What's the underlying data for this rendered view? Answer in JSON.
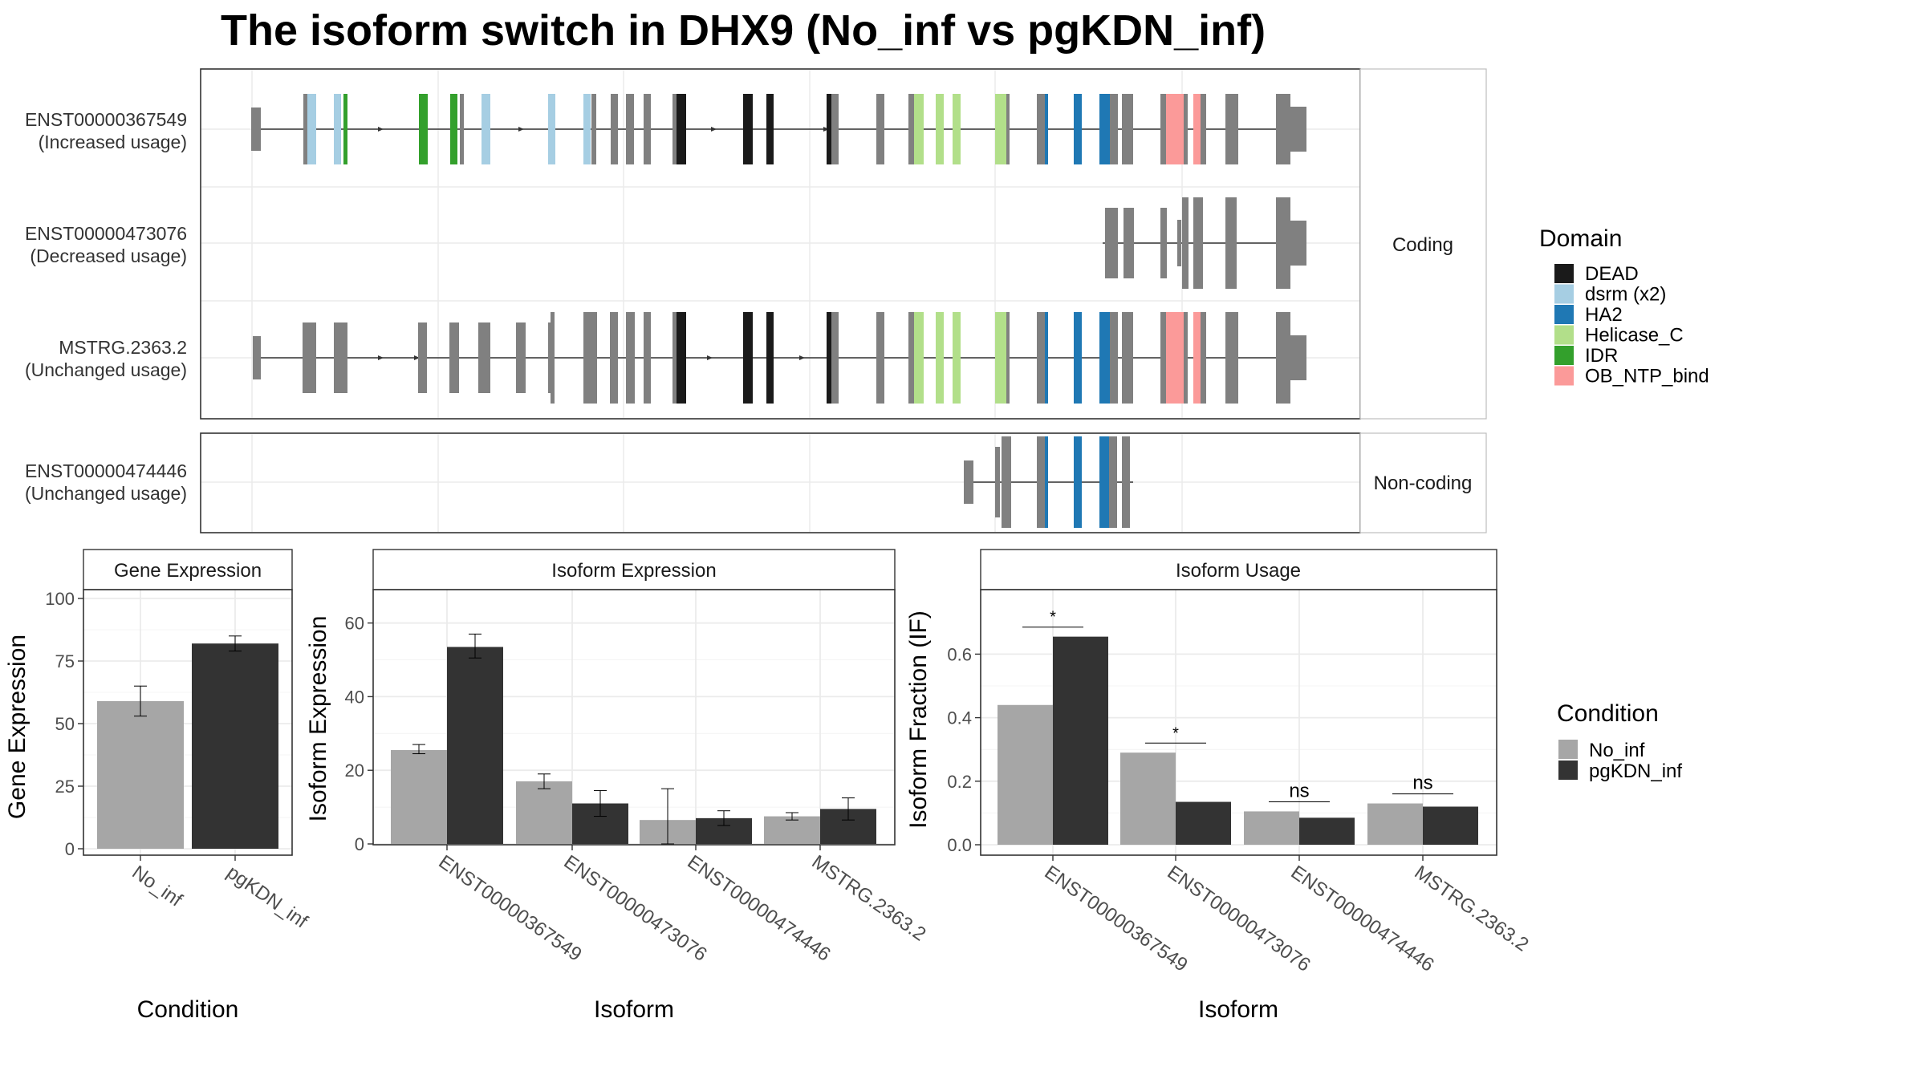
{
  "title": "The isoform switch in DHX9 (No_inf vs pgKDN_inf)",
  "colors": {
    "no_inf": "#a6a6a6",
    "pgkdn_inf": "#333333",
    "exon": "#808080",
    "DEAD": "#1a1a1a",
    "dsrm (x2)": "#a6cee3",
    "HA2": "#1f78b4",
    "Helicase_C": "#b2df8a",
    "IDR": "#33a02c",
    "OB_NTP_bind": "#fb9a99"
  },
  "structure": {
    "facets": {
      "coding": "Coding",
      "noncoding": "Non-coding"
    },
    "isoforms": [
      {
        "id": "ENST00000367549",
        "usage": "(Increased usage)",
        "facet": "coding"
      },
      {
        "id": "ENST00000473076",
        "usage": "(Decreased usage)",
        "facet": "coding"
      },
      {
        "id": "MSTRG.2363.2",
        "usage": "(Unchanged usage)",
        "facet": "coding"
      },
      {
        "id": "ENST00000474446",
        "usage": "(Unchanged usage)",
        "facet": "noncoding"
      }
    ],
    "legend_title": "Domain",
    "domains": [
      "DEAD",
      "dsrm (x2)",
      "HA2",
      "Helicase_C",
      "IDR",
      "OB_NTP_bind"
    ]
  },
  "chart_data": [
    {
      "type": "bar",
      "title": "Gene Expression",
      "xlabel": "Condition",
      "ylabel": "Gene Expression",
      "categories": [
        "No_inf",
        "pgKDN_inf"
      ],
      "values": [
        59,
        82
      ],
      "errors": [
        [
          53,
          65
        ],
        [
          79,
          85
        ]
      ],
      "yticks": [
        0,
        25,
        50,
        75,
        100
      ],
      "ylim": [
        0,
        105
      ]
    },
    {
      "type": "bar",
      "title": "Isoform Expression",
      "xlabel": "Isoform",
      "ylabel": "Isoform Expression",
      "categories": [
        "ENST00000367549",
        "ENST00000473076",
        "ENST00000474446",
        "MSTRG.2363.2"
      ],
      "series": [
        {
          "name": "No_inf",
          "values": [
            25.5,
            17,
            6.5,
            7.5
          ],
          "errors": [
            [
              24.5,
              27
            ],
            [
              15,
              19
            ],
            [
              0,
              15
            ],
            [
              6.5,
              8.5
            ]
          ]
        },
        {
          "name": "pgKDN_inf",
          "values": [
            53.5,
            11,
            7,
            9.5
          ],
          "errors": [
            [
              50.5,
              57
            ],
            [
              7.5,
              14.5
            ],
            [
              5,
              9
            ],
            [
              6.5,
              12.5
            ]
          ]
        }
      ],
      "yticks": [
        0,
        20,
        40,
        60
      ],
      "ylim": [
        -3,
        69
      ]
    },
    {
      "type": "bar",
      "title": "Isoform Usage",
      "xlabel": "Isoform",
      "ylabel": "Isoform Fraction (IF)",
      "categories": [
        "ENST00000367549",
        "ENST00000473076",
        "ENST00000474446",
        "MSTRG.2363.2"
      ],
      "series": [
        {
          "name": "No_inf",
          "values": [
            0.44,
            0.29,
            0.105,
            0.13
          ]
        },
        {
          "name": "pgKDN_inf",
          "values": [
            0.655,
            0.135,
            0.085,
            0.12
          ]
        }
      ],
      "significance": [
        "*",
        "*",
        "ns",
        "ns"
      ],
      "yticks": [
        0.0,
        0.2,
        0.4,
        0.6
      ],
      "ylim": [
        -0.03,
        0.79
      ]
    }
  ],
  "condition_legend": {
    "title": "Condition",
    "items": [
      "No_inf",
      "pgKDN_inf"
    ]
  }
}
